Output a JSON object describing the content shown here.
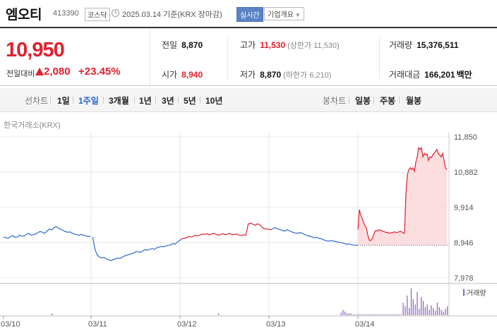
{
  "header": {
    "name": "엠오티",
    "code": "413390",
    "market": "코스닥",
    "date": "2025.03.14 기준(KRX 장마감)",
    "realtime": "실시간",
    "company": "기업개요"
  },
  "summary": {
    "price": "10,950",
    "change_label": "전일대비",
    "change_value": "2,080",
    "change_rate": "+23.45%",
    "prev_label": "전일",
    "prev_value": "8,870",
    "open_label": "시가",
    "open_value": "8,940",
    "high_label": "고가",
    "high_value": "11,530",
    "high_sub": "(상한가 11,530)",
    "low_label": "저가",
    "low_value": "8,870",
    "low_sub": "(하한가 6,210)",
    "volume_label": "거래량",
    "volume_value": "15,376,511",
    "amount_label": "거래대금",
    "amount_value": "166,201",
    "amount_unit": "백만"
  },
  "tabs": {
    "line_label": "선차트",
    "line": [
      "1일",
      "1주일",
      "3개월",
      "1년",
      "3년",
      "5년",
      "10년"
    ],
    "active": "1주일",
    "candle_label": "봉차트",
    "candle": [
      "일봉",
      "주봉",
      "월봉"
    ]
  },
  "chart_source": "한국거래소(KRX)",
  "colors": {
    "up": "#e0202d",
    "down": "#2d6bd0",
    "volume": "#8f6ac7"
  },
  "chart_data": {
    "type": "line",
    "x_labels": [
      "03/10",
      "03/11",
      "03/12",
      "03/13",
      "03/14"
    ],
    "y_ticks": [
      11850,
      10882,
      9914,
      8946,
      7978
    ],
    "ylim": [
      7978,
      11850
    ],
    "baseline": 8870,
    "legend": "거래량",
    "series": [
      {
        "values": [
          9100,
          9080,
          9060,
          9110,
          9140,
          9090,
          9100,
          9150,
          9120,
          9130,
          9170,
          9200,
          9150,
          9160,
          9180,
          9220,
          9250,
          9230,
          9200,
          9260,
          9320,
          9290,
          9350,
          9390,
          9340,
          9310,
          9280,
          9250,
          9230,
          9240,
          9200,
          9180,
          9160,
          9150,
          9170,
          9150,
          9130,
          9110,
          9120,
          9100,
          8760,
          8600,
          8550,
          8520,
          8540,
          8500,
          8470,
          8450,
          8480,
          8500,
          8520,
          8510,
          8550,
          8580,
          8600,
          8620,
          8640,
          8660,
          8700,
          8690,
          8680,
          8720,
          8750,
          8740,
          8760,
          8780,
          8760,
          8800,
          8820,
          8840,
          8830,
          8850,
          8870,
          8880,
          8920,
          8900,
          8960,
          9000,
          9050,
          9060,
          9080,
          9110,
          9100,
          9120,
          9150,
          9130,
          9160,
          9180,
          9170,
          9190,
          9160,
          9180,
          9200,
          9170,
          9150,
          9170,
          9190,
          9160,
          9180,
          9200,
          9160,
          9170,
          9180,
          9150,
          9140,
          9160,
          9150,
          9450,
          9480,
          9450,
          9420,
          9460,
          9440,
          9380,
          9320,
          9320,
          9310,
          9300,
          9340,
          9350,
          9320,
          9300,
          9280,
          9260,
          9300,
          9270,
          9240,
          9220,
          9200,
          9210,
          9220,
          9190,
          9160,
          9130,
          9120,
          9100,
          9080,
          9090,
          9060,
          9050,
          9020,
          9000,
          8980,
          9000,
          8990,
          8980,
          8960,
          8950,
          8940,
          8920,
          8900,
          8910,
          8890,
          8880,
          8870,
          8875
        ]
      },
      {
        "values": [
          9300,
          9850,
          9700,
          9600,
          9500,
          9400,
          9350,
          9150,
          9020,
          9000,
          9050,
          9150,
          9250,
          9280,
          9260,
          9300,
          9280,
          9270,
          9250,
          9240,
          9220,
          9230,
          9200,
          9220,
          9210,
          9230,
          9240,
          9220,
          9230,
          9240,
          9250,
          9240,
          9210,
          9200,
          10300,
          10800,
          10950,
          11000,
          10950,
          11000,
          10900,
          11150,
          11300,
          11550,
          11500,
          11550,
          11300,
          11400,
          11350,
          11380,
          11200,
          11300,
          11280,
          11350,
          11400,
          11450,
          11500,
          11380,
          11350,
          11300,
          11400,
          11200,
          11000,
          10950
        ]
      }
    ],
    "volume": [
      0,
      0,
      0,
      0,
      0,
      0,
      0,
      0,
      0,
      0,
      0,
      0,
      0,
      0,
      0,
      0,
      0,
      0,
      0,
      0,
      0,
      0,
      0,
      0,
      2,
      0,
      0,
      0,
      0,
      0,
      0,
      0,
      0,
      0,
      0,
      0,
      0,
      0,
      0,
      0,
      0,
      0,
      0,
      0,
      0,
      0,
      0,
      0,
      0,
      0,
      0,
      0,
      0,
      0,
      0,
      0,
      0,
      0,
      0,
      0,
      0,
      0,
      0,
      0,
      0,
      0,
      0,
      0,
      0,
      0,
      0,
      0,
      0,
      0,
      0,
      0,
      0,
      0,
      0,
      0,
      0,
      0,
      0,
      0,
      0,
      0,
      0,
      0,
      0,
      0,
      0,
      0,
      0,
      0,
      0,
      0,
      0,
      0,
      0,
      0,
      0,
      0,
      0,
      0,
      0,
      0,
      0,
      2,
      0,
      0,
      0,
      0,
      0,
      0,
      0,
      0,
      0,
      0,
      0,
      0,
      0,
      0,
      0,
      0,
      0,
      0,
      0,
      0,
      0,
      0,
      0,
      0,
      0,
      0,
      0,
      0,
      0,
      0,
      0,
      0,
      0,
      0,
      0,
      0,
      0,
      0,
      0,
      0,
      0,
      0,
      0,
      0,
      0,
      0,
      0,
      0,
      0,
      0,
      0,
      0,
      0,
      0,
      0,
      0,
      0,
      0,
      0,
      0,
      3,
      6,
      4,
      2,
      2,
      2,
      1,
      1,
      1,
      1,
      1,
      1,
      1,
      1,
      1,
      1,
      1,
      1,
      1,
      1,
      1,
      1,
      1,
      1,
      1,
      1,
      1,
      1,
      1,
      1,
      1,
      14,
      10,
      22,
      8,
      30,
      18,
      12,
      26,
      7,
      20,
      16,
      9,
      12,
      6,
      11,
      8,
      5,
      14,
      9,
      6,
      4,
      7,
      10
    ]
  }
}
